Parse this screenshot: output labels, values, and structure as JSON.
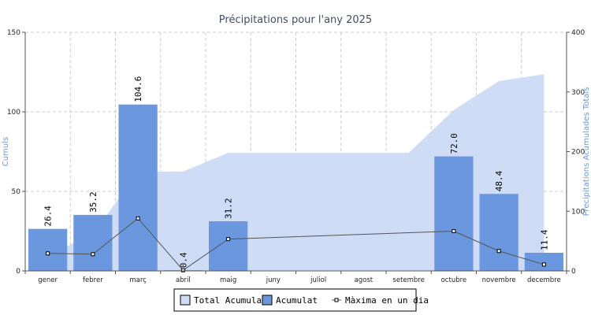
{
  "chart_data": {
    "type": "bar",
    "title": "Précipitations pour l'any 2025",
    "ylabel_left": "Cumuls",
    "ylabel_right": "Precipitations Acumulades Totals",
    "ylim_left": [
      0,
      150
    ],
    "ylim_right": [
      0,
      400
    ],
    "yticks_left": [
      0,
      50,
      100,
      150
    ],
    "yticks_right": [
      0,
      100,
      200,
      300,
      400
    ],
    "grid": true,
    "legend_position": "bottom",
    "categories": [
      "gener",
      "febrer",
      "març",
      "abril",
      "maig",
      "juny",
      "juliol",
      "agost",
      "setembre",
      "octubre",
      "novembre",
      "decembre"
    ],
    "series": [
      {
        "name": "Total Acumulat",
        "type": "area",
        "axis": "right",
        "color": "#cfdcf6",
        "values": [
          26.4,
          61.6,
          166.2,
          166.6,
          197.8,
          197.8,
          197.8,
          197.8,
          197.8,
          269.8,
          318.2,
          329.6
        ]
      },
      {
        "name": "Acumulat",
        "type": "bar",
        "axis": "left",
        "color": "#6a97de",
        "values": [
          26.4,
          35.2,
          104.6,
          0.4,
          31.2,
          0,
          0,
          0,
          0,
          72.0,
          48.4,
          11.4
        ],
        "labels": [
          "26.4",
          "35.2",
          "104.6",
          "0.4",
          "31.2",
          "",
          "",
          "",
          "",
          "72.0",
          "48.4",
          "11.4"
        ]
      },
      {
        "name": "Màxima en un dia",
        "type": "line",
        "axis": "left",
        "color": "#555555",
        "values": [
          11,
          10.5,
          33,
          0.4,
          20,
          null,
          null,
          null,
          null,
          25,
          12.5,
          4
        ]
      }
    ]
  }
}
